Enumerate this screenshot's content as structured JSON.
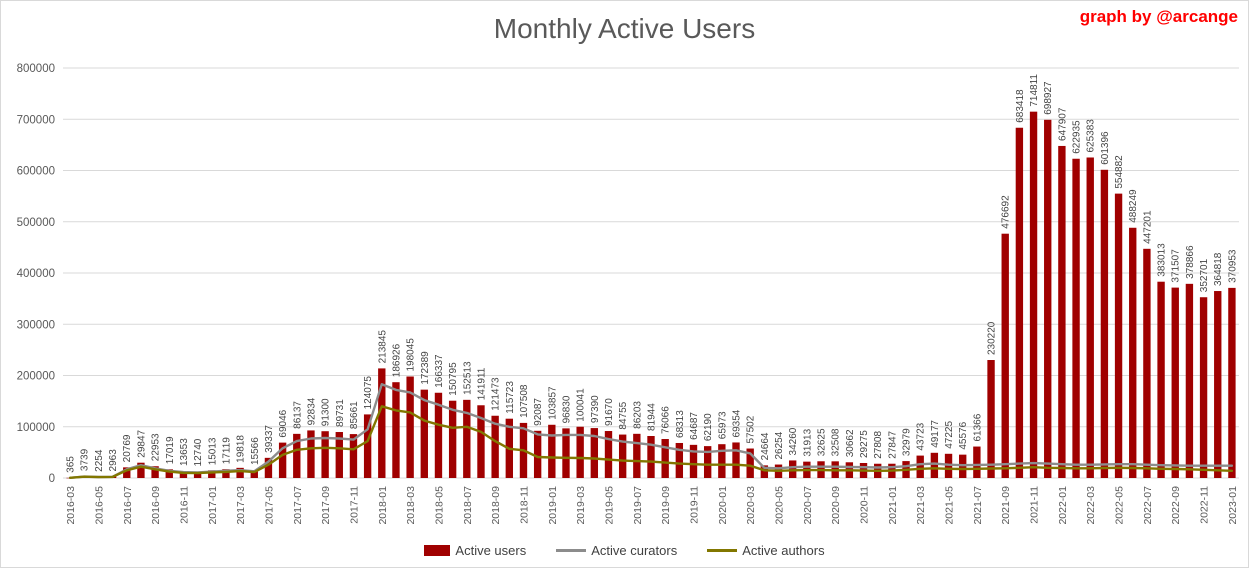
{
  "header": {
    "title": "Monthly Active Users",
    "credit": "graph by @arcange"
  },
  "colors": {
    "bar": "#A00000",
    "curators": "#8C8C8C",
    "authors": "#827700",
    "grid": "#D9D9D9",
    "axis_text": "#595959",
    "bar_label": "#444444",
    "title_text": "#595959",
    "credit_text": "#FF0000",
    "background": "#FFFFFF"
  },
  "chart_data": {
    "type": "bar",
    "title": "Monthly Active Users",
    "xlabel": "",
    "ylabel": "",
    "ylim": [
      0,
      800000
    ],
    "ytick_interval": 100000,
    "ytick_labels": [
      "0",
      "100000",
      "200000",
      "300000",
      "400000",
      "500000",
      "600000",
      "700000",
      "800000"
    ],
    "xtick_every": 2,
    "grid": true,
    "legend_position": "bottom",
    "bar_data_labels": true,
    "categories": [
      "2016-03",
      "2016-04",
      "2016-05",
      "2016-06",
      "2016-07",
      "2016-08",
      "2016-09",
      "2016-10",
      "2016-11",
      "2016-12",
      "2017-01",
      "2017-02",
      "2017-03",
      "2017-04",
      "2017-05",
      "2017-06",
      "2017-07",
      "2017-08",
      "2017-09",
      "2017-10",
      "2017-11",
      "2017-12",
      "2018-01",
      "2018-02",
      "2018-03",
      "2018-04",
      "2018-05",
      "2018-06",
      "2018-07",
      "2018-08",
      "2018-09",
      "2018-10",
      "2018-11",
      "2018-12",
      "2019-01",
      "2019-02",
      "2019-03",
      "2019-04",
      "2019-05",
      "2019-06",
      "2019-07",
      "2019-08",
      "2019-09",
      "2019-10",
      "2019-11",
      "2019-12",
      "2020-01",
      "2020-02",
      "2020-03",
      "2020-04",
      "2020-05",
      "2020-06",
      "2020-07",
      "2020-08",
      "2020-09",
      "2020-10",
      "2020-11",
      "2020-12",
      "2021-01",
      "2021-02",
      "2021-03",
      "2021-04",
      "2021-05",
      "2021-06",
      "2021-07",
      "2021-08",
      "2021-09",
      "2021-10",
      "2021-11",
      "2021-12",
      "2022-01",
      "2022-02",
      "2022-03",
      "2022-04",
      "2022-05",
      "2022-06",
      "2022-07",
      "2022-08",
      "2022-09",
      "2022-10",
      "2022-11",
      "2022-12",
      "2023-01"
    ],
    "series": [
      {
        "name": "Active users",
        "type": "bar",
        "color": "#A00000",
        "labeled": true,
        "values": [
          365,
          3739,
          2254,
          2963,
          20769,
          29847,
          22953,
          17019,
          13653,
          12740,
          15013,
          17119,
          19818,
          15566,
          39337,
          69046,
          86137,
          92834,
          91300,
          89731,
          85661,
          124075,
          213845,
          186926,
          198045,
          172389,
          166337,
          150795,
          152513,
          141911,
          121473,
          115723,
          107508,
          92087,
          103857,
          96830,
          100041,
          97390,
          91670,
          84755,
          86203,
          81944,
          76066,
          68313,
          64687,
          62190,
          65973,
          69354,
          57502,
          24664,
          26254,
          34260,
          31913,
          32625,
          32508,
          30662,
          29275,
          27808,
          27847,
          32979,
          43723,
          49177,
          47225,
          45576,
          61366,
          230220,
          476692,
          683418,
          714811,
          698927,
          647907,
          622935,
          625383,
          601396,
          554882,
          488249,
          447201,
          383013,
          371507,
          378866,
          352701,
          364818,
          370953
        ]
      },
      {
        "name": "Active curators",
        "type": "line",
        "color": "#8C8C8C",
        "labeled": false,
        "values": [
          300,
          2800,
          1900,
          2400,
          17000,
          25000,
          19000,
          14000,
          11500,
          11000,
          12500,
          14000,
          15500,
          13000,
          32000,
          58000,
          72000,
          77000,
          78000,
          77000,
          75000,
          95000,
          183000,
          172000,
          167000,
          152000,
          143000,
          133000,
          127000,
          117000,
          106000,
          100000,
          97000,
          85000,
          83000,
          84000,
          84000,
          82000,
          76000,
          71000,
          68000,
          65000,
          60000,
          55000,
          52000,
          51000,
          53000,
          54000,
          48000,
          20000,
          19000,
          21000,
          22000,
          22000,
          22000,
          21500,
          21000,
          20500,
          21000,
          23000,
          27000,
          28000,
          26000,
          25000,
          25500,
          26000,
          27000,
          28000,
          29000,
          28000,
          27000,
          26000,
          26000,
          26500,
          27000,
          27000,
          26000,
          25000,
          24500,
          24000,
          24000,
          24000,
          24000
        ]
      },
      {
        "name": "Active authors",
        "type": "line",
        "color": "#827700",
        "labeled": false,
        "values": [
          300,
          2500,
          1700,
          2200,
          15000,
          22000,
          17000,
          12500,
          10000,
          9500,
          11000,
          12000,
          13500,
          11500,
          26000,
          45000,
          55000,
          58000,
          59000,
          58000,
          56000,
          72000,
          140000,
          132000,
          128000,
          112000,
          104000,
          98000,
          100000,
          90000,
          72000,
          57000,
          54000,
          41000,
          40000,
          39500,
          39000,
          38000,
          36000,
          34000,
          33000,
          32000,
          30000,
          28000,
          27000,
          26000,
          26000,
          26000,
          24000,
          15000,
          14000,
          15000,
          15500,
          15500,
          15000,
          15000,
          14500,
          14000,
          14500,
          16000,
          18000,
          19000,
          18000,
          17500,
          18000,
          18500,
          19000,
          20000,
          21000,
          20000,
          19500,
          19000,
          19000,
          19500,
          20000,
          19500,
          19000,
          18000,
          17500,
          17000,
          16000,
          15000,
          14000
        ]
      }
    ]
  }
}
